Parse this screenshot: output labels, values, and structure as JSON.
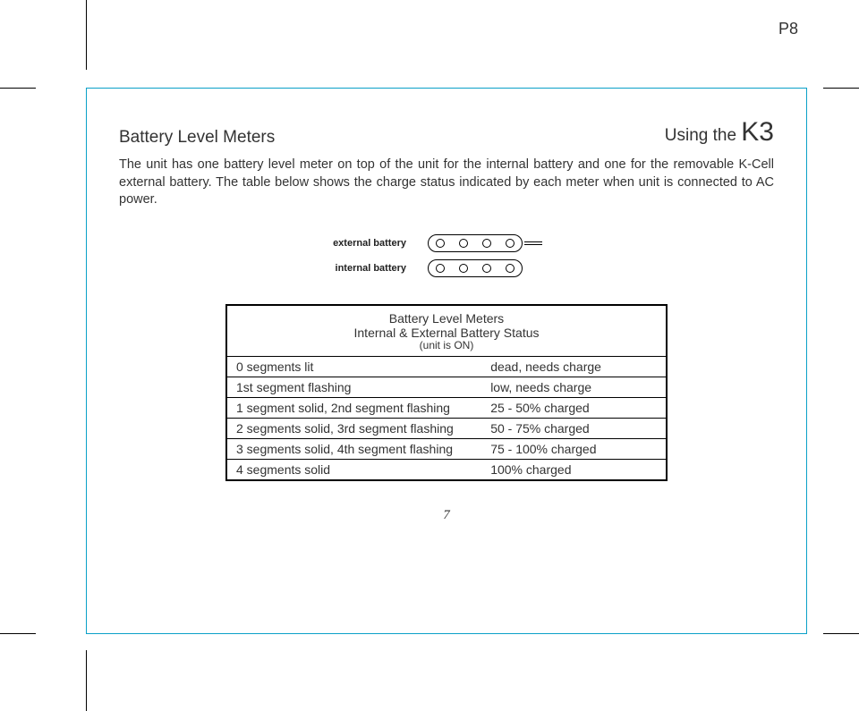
{
  "page": {
    "top_page_label": "P8",
    "inner_page_number": "7",
    "border_color": "#0aa0c8",
    "background_color": "#ffffff",
    "text_color": "#333333"
  },
  "header": {
    "section_title": "Battery Level Meters",
    "chapter_prefix": "Using the ",
    "chapter_model": "K3"
  },
  "body": {
    "paragraph": "The unit has one battery level meter on top of the unit for the internal battery and one for the removable K-Cell external battery. The table below shows the charge status indicated by each meter when unit is connected to AC power."
  },
  "diagram": {
    "labels": {
      "external": "external battery",
      "internal": "internal battery"
    },
    "segments": 4,
    "external_has_tail": true,
    "label_fontsize": 11,
    "label_fontweight": 700,
    "stroke_color": "#000000"
  },
  "table": {
    "heading_line1": "Battery Level Meters",
    "heading_line2": "Internal & External Battery Status",
    "heading_line3": "(unit is ON)",
    "border_color": "#000000",
    "font_size": 14,
    "rows": [
      {
        "left": "0 segments lit",
        "right": "dead, needs charge"
      },
      {
        "left": "1st segment flashing",
        "right": "low, needs charge"
      },
      {
        "left": "1 segment solid, 2nd segment flashing",
        "right": "25 - 50% charged"
      },
      {
        "left": "2 segments solid, 3rd segment flashing",
        "right": "50 - 75% charged"
      },
      {
        "left": "3 segments solid, 4th segment flashing",
        "right": "75 - 100% charged"
      },
      {
        "left": "4 segments solid",
        "right": "100% charged"
      }
    ]
  }
}
